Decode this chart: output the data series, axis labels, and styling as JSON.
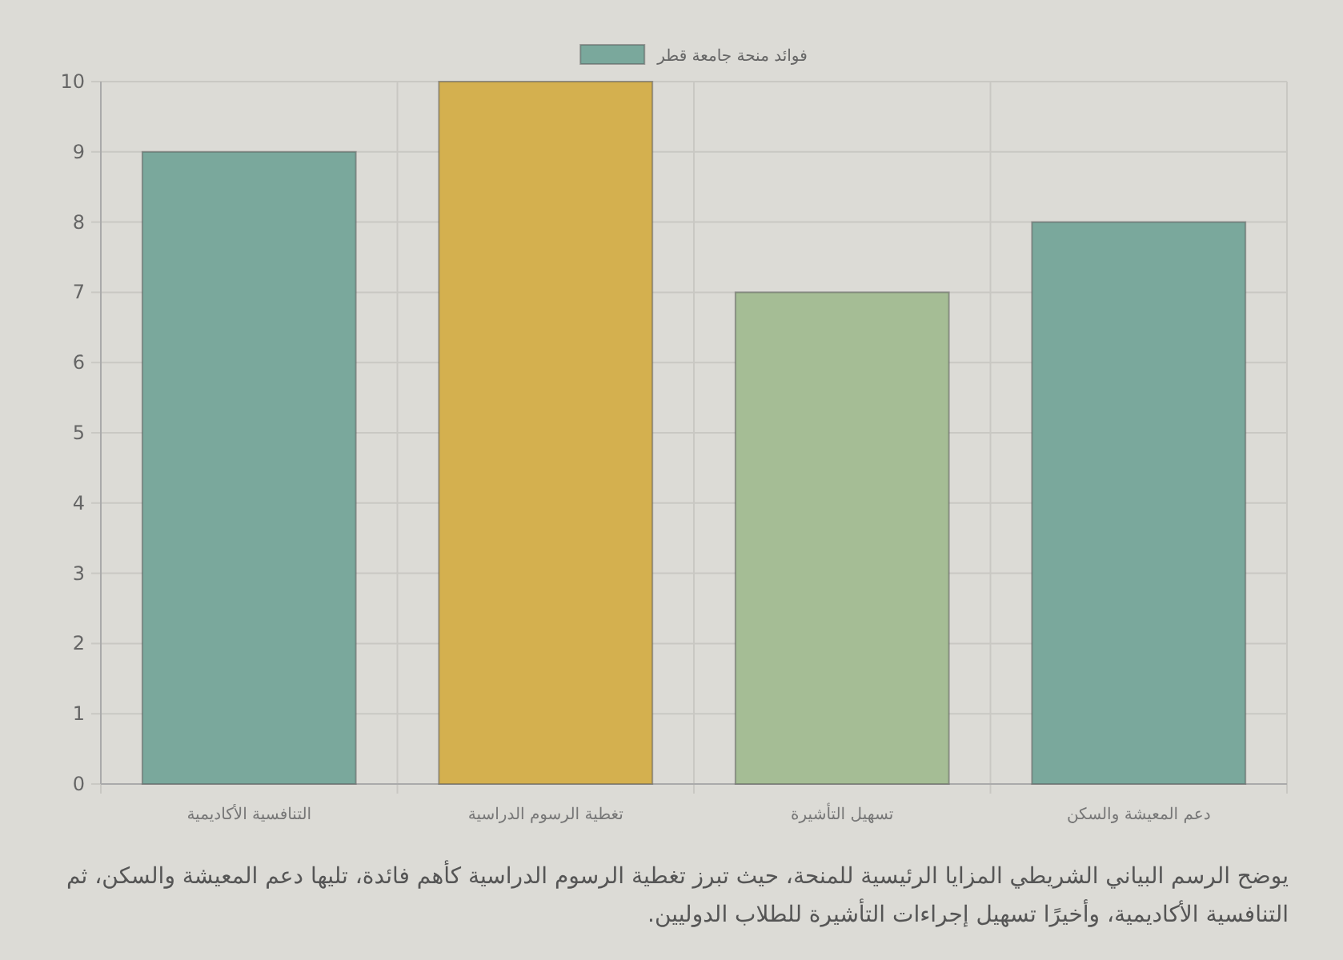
{
  "chart_data": {
    "type": "bar",
    "categories": [
      "التنافسية الأكاديمية",
      "تغطية الرسوم الدراسية",
      "تسهيل التأشيرة",
      "دعم المعيشة والسكن"
    ],
    "series": [
      {
        "name": "فوائد منحة جامعة قطر",
        "color": "#7aa89c",
        "colors": [
          "#7aa89c",
          "#d4b04f",
          "#a5bd95",
          "#7aa89c"
        ],
        "values": [
          9,
          10,
          7,
          8
        ]
      }
    ],
    "ylim": [
      0,
      10
    ],
    "yticks": [
      0,
      1,
      2,
      3,
      4,
      5,
      6,
      7,
      8,
      9,
      10
    ],
    "grid": true,
    "legend": "top",
    "annotations": [
      "يوضح الرسم البياني الشريطي المزايا الرئيسية للمنحة، حيث تبرز تغطية الرسوم الدراسية كأهم فائدة، تليها دعم المعيشة والسكن، ثم التنافسية الأكاديمية، وأخيرًا تسهيل إجراءات التأشيرة للطلاب الدوليين."
    ]
  }
}
